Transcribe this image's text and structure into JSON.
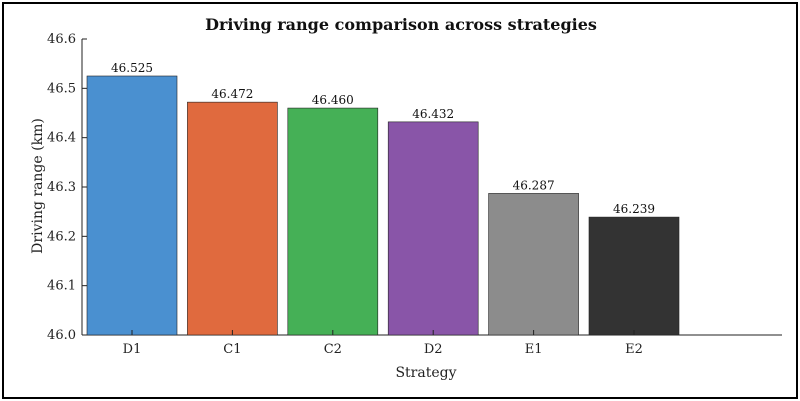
{
  "chart_data": {
    "type": "bar",
    "title": "Driving range comparison across strategies",
    "xlabel": "Strategy",
    "ylabel": "Driving range (km)",
    "categories": [
      "D1",
      "C1",
      "C2",
      "D2",
      "E1",
      "E2"
    ],
    "values": [
      46.525,
      46.472,
      46.46,
      46.432,
      46.287,
      46.239
    ],
    "value_labels": [
      "46.525",
      "46.472",
      "46.460",
      "46.432",
      "46.287",
      "46.239"
    ],
    "colors": [
      "#4a90d0",
      "#e06a3e",
      "#45b056",
      "#8955a8",
      "#8c8c8c",
      "#333333"
    ],
    "ylim": [
      46.0,
      46.6
    ],
    "yticks": [
      "46.0",
      "46.1",
      "46.2",
      "46.3",
      "46.4",
      "46.5",
      "46.6"
    ],
    "grid": false,
    "legend": "none"
  }
}
